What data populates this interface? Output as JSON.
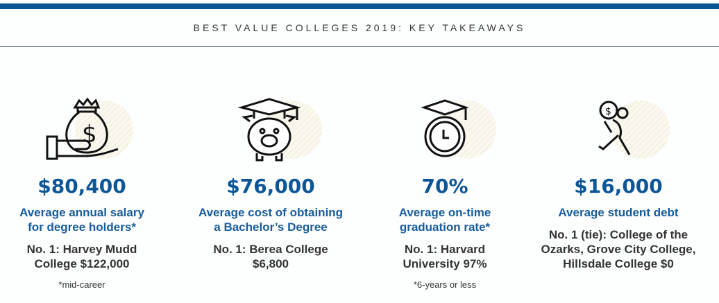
{
  "header": {
    "title": "BEST VALUE COLLEGES 2019: KEY TAKEAWAYS"
  },
  "colors": {
    "brand": "#0b5593",
    "accent_circle": "#f4efdc"
  },
  "stats": [
    {
      "icon": "money-bag-hand-icon",
      "value": "$80,400",
      "label": [
        "Average annual salary",
        "for degree holders*"
      ],
      "sub": [
        "No. 1: Harvey Mudd",
        "College $122,000"
      ],
      "note": "*mid-career"
    },
    {
      "icon": "piggy-bank-graduation-icon",
      "value": "$76,000",
      "label": [
        "Average cost of obtaining",
        "a Bachelor’s Degree"
      ],
      "sub": [
        "No. 1: Berea College",
        "$6,800"
      ],
      "note": ""
    },
    {
      "icon": "clock-graduation-icon",
      "value": "70%",
      "label": [
        "Average on-time",
        "graduation rate*"
      ],
      "sub": [
        "No. 1: Harvard",
        "University 97%"
      ],
      "note": "*6-years or less"
    },
    {
      "icon": "person-carrying-coin-icon",
      "value": "$16,000",
      "label": [
        "Average student debt"
      ],
      "sub": [
        "No. 1 (tie): College of the",
        "Ozarks, Grove City College,",
        "Hillsdale College $0"
      ],
      "note": ""
    }
  ]
}
